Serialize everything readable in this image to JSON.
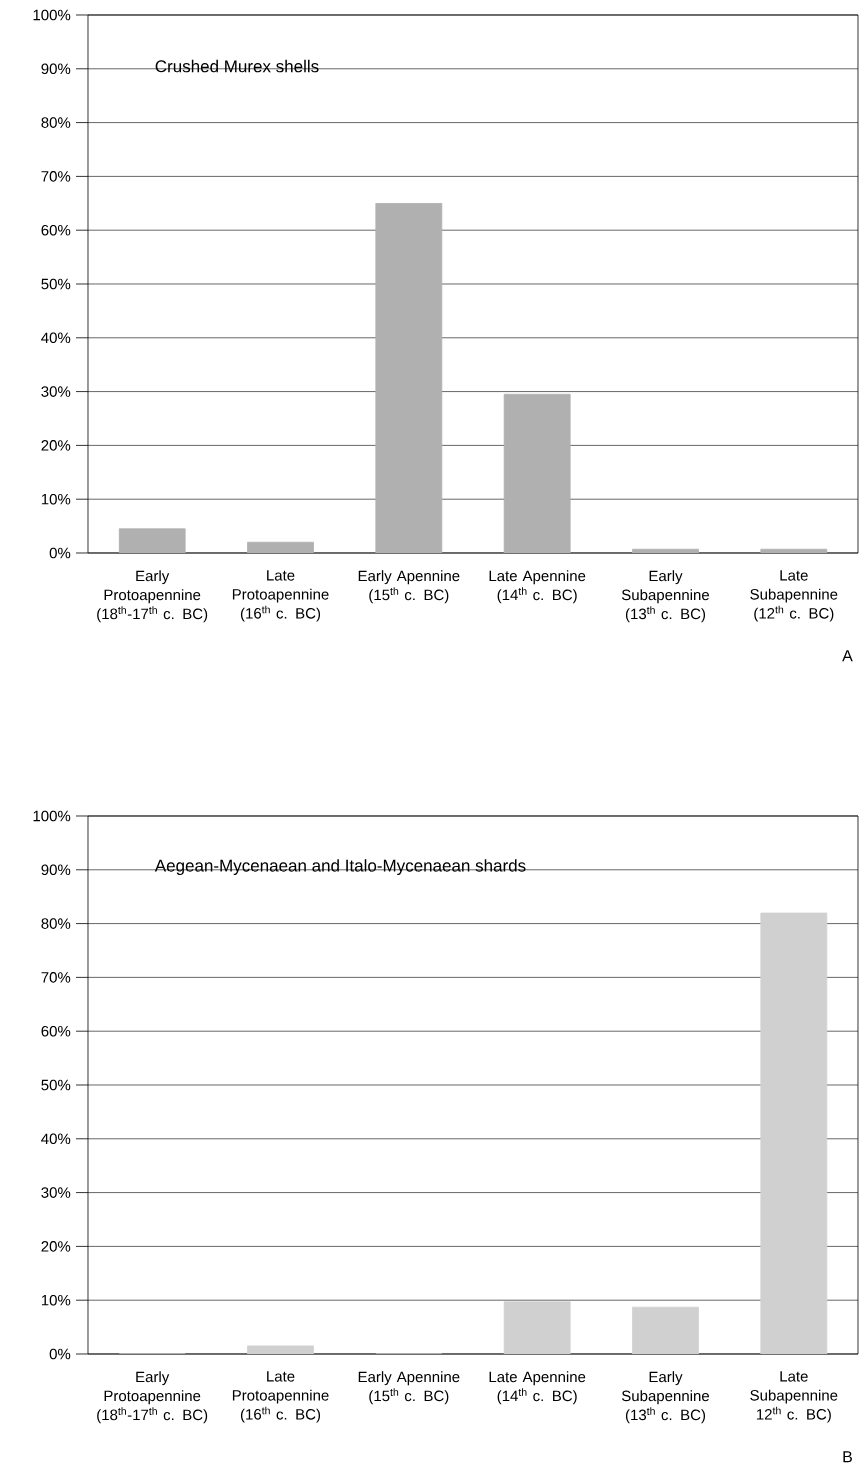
{
  "chart_data": [
    {
      "type": "bar",
      "title": "Crushed Murex shells",
      "categories": [
        "Early Protoapennine (18$^{th}$-17$^{th}$ c. BC)",
        "Late Protoapennine (16$^{th}$ c. BC)",
        "Early Apennine (15$^{th}$ c. BC)",
        "Late Apennine (14$^{th}$ c. BC)",
        "Early Subapennine (13$^{th}$ c. BC)",
        "Late Subapennine (12$^{th}$ c. BC)"
      ],
      "values": [
        4.5,
        2,
        65,
        29.5,
        0.7,
        0.7
      ],
      "color": "#b0b0b0",
      "ylim": [
        0,
        100
      ],
      "yticks": [
        {
          "value": 0,
          "label": "0%"
        },
        {
          "value": 10,
          "label": "10%"
        },
        {
          "value": 20,
          "label": "20%"
        },
        {
          "value": 30,
          "label": "30%"
        },
        {
          "value": 40,
          "label": "40%"
        },
        {
          "value": 50,
          "label": "50%"
        },
        {
          "value": 60,
          "label": "60%"
        },
        {
          "value": 70,
          "label": "70%"
        },
        {
          "value": 80,
          "label": "80%"
        },
        {
          "value": 90,
          "label": "90%"
        },
        {
          "value": 100,
          "label": "100%"
        }
      ],
      "grid": "y",
      "annotations": [
        "A"
      ]
    },
    {
      "type": "bar",
      "title": "Aegean-Mycenaean and Italo-Mycenaean shards",
      "categories": [
        "Early Protoapennine (18$^{th}$-17$^{th}$ c. BC)",
        "Late Protoapennine (16$^{th}$ c. BC)",
        "Early Apennine (15$^{th}$ c. BC)",
        "Late Apennine (14$^{th}$ c. BC)",
        "Early Subapennine (13$^{th}$ c. BC)",
        "Late Subapennine 12$^{th}$ c. BC)"
      ],
      "values": [
        0,
        1.5,
        0,
        9.7,
        8.7,
        82
      ],
      "color": "#d0d0d0",
      "ylim": [
        0,
        100
      ],
      "yticks": [
        {
          "value": 0,
          "label": "0%"
        },
        {
          "value": 10,
          "label": "10%"
        },
        {
          "value": 20,
          "label": "20%"
        },
        {
          "value": 30,
          "label": "30%"
        },
        {
          "value": 40,
          "label": "40%"
        },
        {
          "value": 50,
          "label": "50%"
        },
        {
          "value": 60,
          "label": "60%"
        },
        {
          "value": 70,
          "label": "70%"
        },
        {
          "value": 80,
          "label": "80%"
        },
        {
          "value": 90,
          "label": "90%"
        },
        {
          "value": 100,
          "label": "100%"
        }
      ],
      "grid": "y",
      "annotations": [
        "B"
      ]
    }
  ]
}
